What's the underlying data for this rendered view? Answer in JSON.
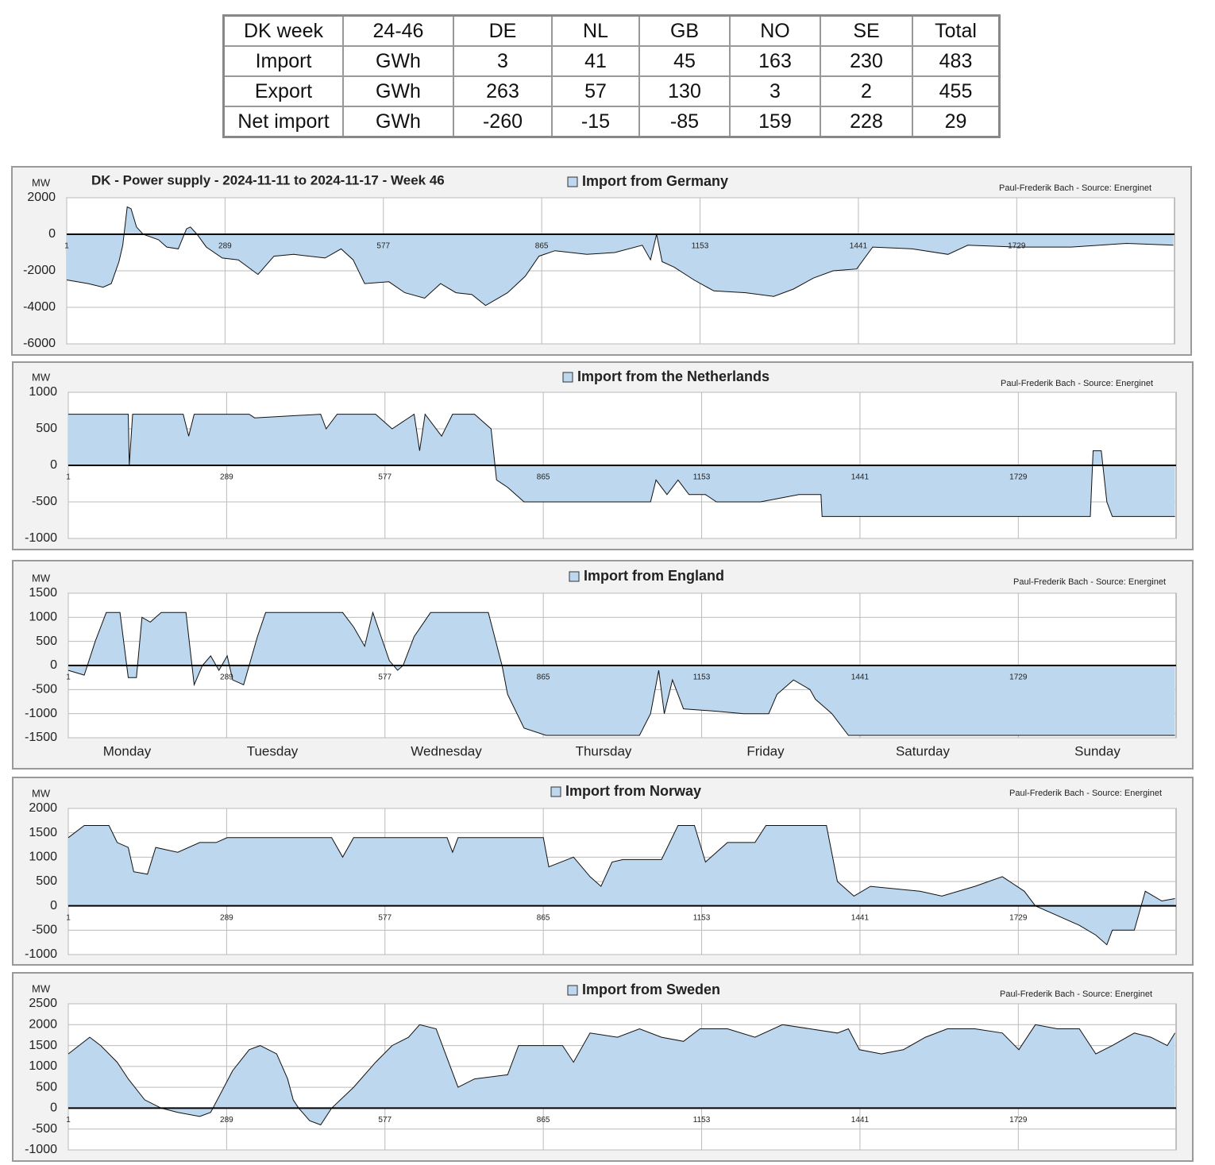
{
  "table": {
    "header": [
      "DK week",
      "24-46",
      "DE",
      "NL",
      "GB",
      "NO",
      "SE",
      "Total"
    ],
    "rows": [
      [
        "Import",
        "GWh",
        3,
        41,
        45,
        163,
        230,
        483
      ],
      [
        "Export",
        "GWh",
        263,
        57,
        130,
        3,
        2,
        455
      ],
      [
        "Net import",
        "GWh",
        -260,
        -15,
        -85,
        159,
        228,
        29
      ]
    ]
  },
  "chart_data": [
    {
      "type": "area",
      "title": "DK - Power supply - 2024-11-11 to 2024-11-17 - Week 46",
      "y_unit": "MW",
      "credit": "Paul-Frederik Bach - Source: Energinet",
      "xlim": [
        1,
        2016
      ],
      "xticks": [
        1,
        289,
        577,
        865,
        1153,
        1441,
        1729
      ],
      "ylim": [
        -6000,
        2000
      ],
      "yticks": [
        2000,
        0,
        -2000,
        -4000,
        -6000
      ],
      "grid": true,
      "series": [
        {
          "name": "Import from Germany",
          "color": "#bdd7ee",
          "x": [
            1,
            40,
            67,
            82,
            96,
            103,
            111,
            118,
            128,
            140,
            168,
            183,
            204,
            219,
            226,
            238,
            255,
            284,
            313,
            349,
            378,
            414,
            471,
            500,
            522,
            543,
            587,
            616,
            652,
            681,
            709,
            738,
            763,
            803,
            835,
            860,
            889,
            947,
            998,
            1048,
            1063,
            1074,
            1084,
            1106,
            1142,
            1178,
            1236,
            1287,
            1323,
            1359,
            1395,
            1438,
            1467,
            1539,
            1604,
            1640,
            1727,
            1828,
            1929,
            2014
          ],
          "values": [
            -2500,
            -2700,
            -2900,
            -2700,
            -1500,
            -600,
            1500,
            1400,
            400,
            0,
            -300,
            -700,
            -800,
            300,
            400,
            0,
            -700,
            -1300,
            -1400,
            -2200,
            -1200,
            -1100,
            -1300,
            -800,
            -1400,
            -2700,
            -2600,
            -3200,
            -3500,
            -2700,
            -3200,
            -3300,
            -3900,
            -3200,
            -2300,
            -1200,
            -900,
            -1100,
            -1000,
            -600,
            -1400,
            0,
            -1500,
            -1800,
            -2500,
            -3100,
            -3200,
            -3400,
            -3000,
            -2400,
            -2000,
            -1900,
            -700,
            -800,
            -1100,
            -600,
            -700,
            -700,
            -500,
            -600
          ]
        }
      ]
    },
    {
      "type": "area",
      "y_unit": "MW",
      "credit": "Paul-Frederik Bach - Source: Energinet",
      "xlim": [
        1,
        2016
      ],
      "xticks": [
        1,
        289,
        577,
        865,
        1153,
        1441,
        1729
      ],
      "ylim": [
        -1000,
        1000
      ],
      "yticks": [
        1000,
        500,
        0,
        -500,
        -1000
      ],
      "grid": true,
      "series": [
        {
          "name": "Import from the Netherlands",
          "color": "#bdd7ee",
          "x": [
            1,
            110,
            112,
            118,
            210,
            220,
            230,
            330,
            340,
            460,
            470,
            490,
            560,
            590,
            630,
            640,
            650,
            680,
            700,
            740,
            770,
            780,
            800,
            830,
            880,
            1060,
            1070,
            1090,
            1110,
            1130,
            1160,
            1180,
            1260,
            1330,
            1370,
            1372,
            1860,
            1865,
            1880,
            1890,
            1900,
            2014
          ],
          "values": [
            700,
            700,
            0,
            700,
            700,
            400,
            700,
            700,
            650,
            700,
            500,
            700,
            700,
            500,
            700,
            200,
            700,
            400,
            700,
            700,
            500,
            -200,
            -300,
            -500,
            -500,
            -500,
            -200,
            -400,
            -200,
            -400,
            -400,
            -500,
            -500,
            -400,
            -400,
            -700,
            -700,
            200,
            200,
            -500,
            -700,
            -700
          ]
        }
      ]
    },
    {
      "type": "area",
      "y_unit": "MW",
      "credit": "Paul-Frederik Bach - Source: Energinet",
      "xlim": [
        1,
        2016
      ],
      "xticks": [
        1,
        289,
        577,
        865,
        1153,
        1441,
        1729
      ],
      "ylim": [
        -1500,
        1500
      ],
      "yticks": [
        1500,
        1000,
        500,
        0,
        -500,
        -1000,
        -1500
      ],
      "grid": true,
      "day_labels": [
        "Monday",
        "Tuesday",
        "Wednesday",
        "Thursday",
        "Friday",
        "Saturday",
        "Sunday"
      ],
      "series": [
        {
          "name": "Import from England",
          "color": "#bdd7ee",
          "x": [
            1,
            30,
            50,
            70,
            95,
            110,
            125,
            135,
            150,
            170,
            215,
            230,
            245,
            260,
            275,
            290,
            300,
            320,
            345,
            360,
            500,
            520,
            540,
            555,
            570,
            585,
            600,
            610,
            630,
            660,
            765,
            790,
            800,
            830,
            870,
            1040,
            1060,
            1075,
            1085,
            1100,
            1120,
            1180,
            1230,
            1275,
            1290,
            1320,
            1350,
            1360,
            1390,
            1420,
            2014
          ],
          "values": [
            -100,
            -200,
            500,
            1100,
            1100,
            -250,
            -250,
            1000,
            900,
            1100,
            1100,
            -400,
            0,
            200,
            -100,
            200,
            -300,
            -400,
            600,
            1100,
            1100,
            800,
            400,
            1100,
            600,
            100,
            -100,
            0,
            600,
            1100,
            1100,
            0,
            -600,
            -1300,
            -1450,
            -1450,
            -1000,
            -100,
            -1000,
            -300,
            -900,
            -950,
            -1000,
            -1000,
            -600,
            -300,
            -500,
            -700,
            -1000,
            -1450,
            -1450
          ]
        }
      ]
    },
    {
      "type": "area",
      "y_unit": "MW",
      "credit": "Paul-Frederik Bach - Source: Energinet",
      "xlim": [
        1,
        2016
      ],
      "xticks": [
        1,
        289,
        577,
        865,
        1153,
        1441,
        1729
      ],
      "ylim": [
        -1000,
        2000
      ],
      "yticks": [
        2000,
        1500,
        1000,
        500,
        0,
        -500,
        -1000
      ],
      "grid": true,
      "series": [
        {
          "name": "Import from Norway",
          "color": "#bdd7ee",
          "x": [
            1,
            30,
            75,
            90,
            110,
            120,
            145,
            160,
            200,
            240,
            270,
            290,
            480,
            500,
            520,
            690,
            700,
            710,
            865,
            875,
            920,
            950,
            970,
            990,
            1010,
            1080,
            1110,
            1140,
            1160,
            1200,
            1250,
            1270,
            1360,
            1380,
            1400,
            1430,
            1460,
            1550,
            1590,
            1650,
            1700,
            1740,
            1760,
            1800,
            1840,
            1870,
            1890,
            1900,
            1940,
            1960,
            1990,
            2014
          ],
          "values": [
            1400,
            1650,
            1650,
            1300,
            1200,
            700,
            650,
            1200,
            1100,
            1300,
            1300,
            1400,
            1400,
            1000,
            1400,
            1400,
            1100,
            1400,
            1400,
            800,
            1000,
            600,
            400,
            900,
            950,
            950,
            1650,
            1650,
            900,
            1300,
            1300,
            1650,
            1650,
            1650,
            500,
            200,
            400,
            300,
            200,
            400,
            600,
            300,
            0,
            -200,
            -400,
            -600,
            -800,
            -500,
            -500,
            300,
            100,
            150
          ]
        }
      ]
    },
    {
      "type": "area",
      "y_unit": "MW",
      "credit": "Paul-Frederik Bach - Source: Energinet",
      "xlim": [
        1,
        2016
      ],
      "xticks": [
        1,
        289,
        577,
        865,
        1153,
        1441,
        1729
      ],
      "ylim": [
        -1000,
        2500
      ],
      "yticks": [
        2500,
        2000,
        1500,
        1000,
        500,
        0,
        -500,
        -1000
      ],
      "grid": true,
      "series": [
        {
          "name": "Import from Sweden",
          "color": "#bdd7ee",
          "x": [
            1,
            40,
            60,
            90,
            110,
            140,
            170,
            200,
            240,
            260,
            300,
            330,
            350,
            380,
            400,
            410,
            420,
            440,
            460,
            480,
            520,
            560,
            590,
            620,
            640,
            670,
            690,
            710,
            740,
            800,
            820,
            860,
            900,
            920,
            950,
            1000,
            1040,
            1080,
            1120,
            1150,
            1200,
            1250,
            1300,
            1350,
            1400,
            1420,
            1440,
            1480,
            1520,
            1560,
            1600,
            1650,
            1700,
            1730,
            1760,
            1800,
            1840,
            1870,
            1900,
            1940,
            1970,
            2000,
            2014
          ],
          "values": [
            1300,
            1700,
            1500,
            1100,
            700,
            200,
            0,
            -100,
            -200,
            -100,
            900,
            1400,
            1500,
            1300,
            700,
            200,
            0,
            -300,
            -400,
            0,
            500,
            1100,
            1500,
            1700,
            2000,
            1900,
            1200,
            500,
            700,
            800,
            1500,
            1500,
            1500,
            1100,
            1800,
            1700,
            1900,
            1700,
            1600,
            1900,
            1900,
            1700,
            2000,
            1900,
            1800,
            1900,
            1400,
            1300,
            1400,
            1700,
            1900,
            1900,
            1800,
            1400,
            2000,
            1900,
            1900,
            1300,
            1500,
            1800,
            1700,
            1500,
            1800
          ]
        }
      ]
    }
  ]
}
